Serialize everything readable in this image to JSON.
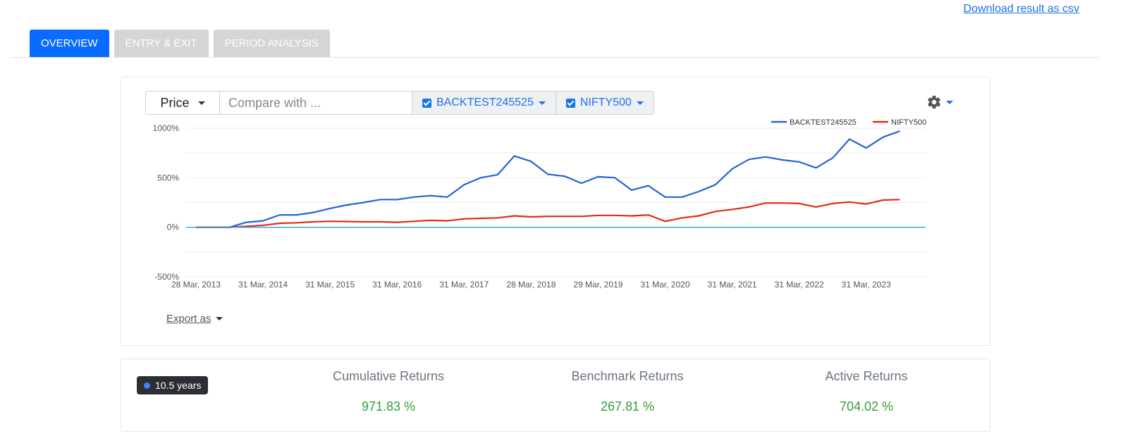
{
  "download_link": "Download result as csv",
  "tabs": [
    "OVERVIEW",
    "ENTRY & EXIT",
    "PERIOD ANALYSIS"
  ],
  "toolbar": {
    "price_label": "Price",
    "compare_placeholder": "Compare with ...",
    "series_chips": [
      "BACKTEST245525",
      "NIFTY500"
    ]
  },
  "export_label": "Export as",
  "chart_data": {
    "type": "line",
    "title": "",
    "xlabel": "",
    "ylabel": "",
    "ylim": [
      -500,
      1000
    ],
    "yticks": [
      1000,
      500,
      0,
      -500
    ],
    "ytick_labels": [
      "1000%",
      "500%",
      "0%",
      "-500%"
    ],
    "xtick_labels": [
      "28 Mar, 2013",
      "31 Mar, 2014",
      "31 Mar, 2015",
      "31 Mar, 2016",
      "31 Mar, 2017",
      "28 Mar, 2018",
      "29 Mar, 2019",
      "31 Mar, 2020",
      "31 Mar, 2021",
      "31 Mar, 2022",
      "31 Mar, 2023"
    ],
    "x": [
      2013.0,
      2013.25,
      2013.5,
      2013.75,
      2014.0,
      2014.25,
      2014.5,
      2014.75,
      2015.0,
      2015.25,
      2015.5,
      2015.75,
      2016.0,
      2016.25,
      2016.5,
      2016.75,
      2017.0,
      2017.25,
      2017.5,
      2017.75,
      2018.0,
      2018.25,
      2018.5,
      2018.75,
      2019.0,
      2019.25,
      2019.5,
      2019.75,
      2020.0,
      2020.25,
      2020.5,
      2020.75,
      2021.0,
      2021.25,
      2021.5,
      2021.75,
      2022.0,
      2022.25,
      2022.5,
      2022.75,
      2023.0,
      2023.25,
      2023.5
    ],
    "series": [
      {
        "name": "BACKTEST245525",
        "color": "#2563d6",
        "values": [
          0,
          0,
          0,
          50,
          65,
          125,
          125,
          150,
          190,
          225,
          250,
          280,
          280,
          305,
          320,
          305,
          430,
          500,
          530,
          720,
          665,
          535,
          515,
          445,
          510,
          500,
          375,
          420,
          305,
          305,
          360,
          430,
          590,
          685,
          710,
          680,
          660,
          600,
          700,
          890,
          800,
          910,
          970
        ]
      },
      {
        "name": "NIFTY500",
        "color": "#e02b1a",
        "values": [
          0,
          0,
          0,
          10,
          20,
          40,
          45,
          55,
          60,
          58,
          55,
          55,
          50,
          60,
          70,
          65,
          85,
          90,
          95,
          115,
          105,
          110,
          110,
          110,
          120,
          120,
          115,
          125,
          60,
          95,
          115,
          160,
          180,
          205,
          245,
          245,
          240,
          205,
          240,
          255,
          235,
          275,
          280
        ]
      }
    ],
    "legend_position": "top-right",
    "zero_line": true,
    "grid": true
  },
  "summary": {
    "period_badge": "10.5 years",
    "metrics": [
      {
        "title": "Cumulative Returns",
        "value": "971.83 %"
      },
      {
        "title": "Benchmark Returns",
        "value": "267.81 %"
      },
      {
        "title": "Active Returns",
        "value": "704.02 %"
      }
    ]
  }
}
